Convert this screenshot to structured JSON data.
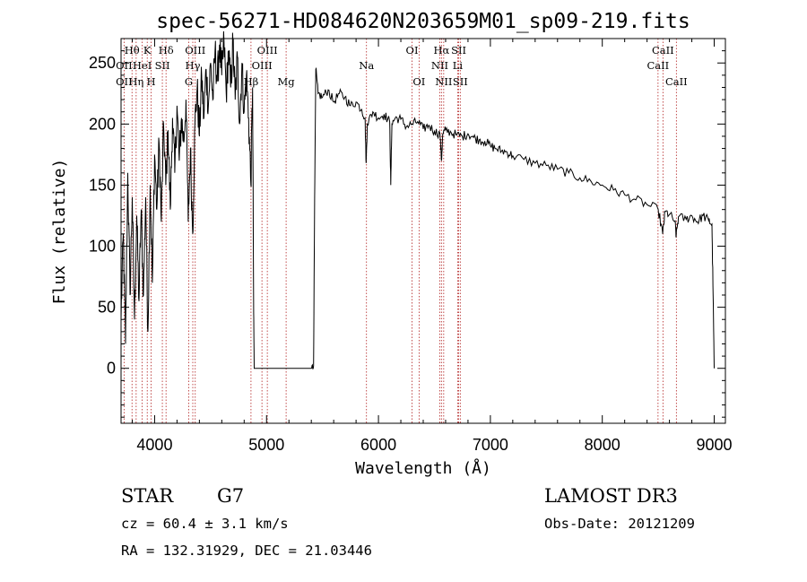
{
  "chart_data": {
    "type": "line",
    "title": "spec-56271-HD084620N203659M01_sp09-219.fits",
    "xlabel": "Wavelength (Å)",
    "ylabel": "Flux (relative)",
    "xlim": [
      3700,
      9100
    ],
    "ylim": [
      -45,
      270
    ],
    "x_ticks": [
      4000,
      5000,
      6000,
      7000,
      8000,
      9000
    ],
    "y_ticks": [
      0,
      50,
      100,
      150,
      200,
      250
    ],
    "grid": false,
    "series": [
      {
        "name": "spectrum",
        "points": [
          [
            3700,
            40
          ],
          [
            3720,
            110
          ],
          [
            3740,
            20
          ],
          [
            3760,
            160
          ],
          [
            3780,
            60
          ],
          [
            3800,
            140
          ],
          [
            3820,
            40
          ],
          [
            3840,
            125
          ],
          [
            3860,
            55
          ],
          [
            3880,
            130
          ],
          [
            3900,
            60
          ],
          [
            3920,
            140
          ],
          [
            3940,
            30
          ],
          [
            3960,
            150
          ],
          [
            3980,
            70
          ],
          [
            4000,
            175
          ],
          [
            4020,
            130
          ],
          [
            4040,
            185
          ],
          [
            4060,
            120
          ],
          [
            4080,
            200
          ],
          [
            4100,
            150
          ],
          [
            4120,
            195
          ],
          [
            4140,
            130
          ],
          [
            4160,
            205
          ],
          [
            4180,
            160
          ],
          [
            4200,
            215
          ],
          [
            4220,
            170
          ],
          [
            4240,
            205
          ],
          [
            4260,
            185
          ],
          [
            4280,
            220
          ],
          [
            4300,
            120
          ],
          [
            4320,
            180
          ],
          [
            4340,
            110
          ],
          [
            4360,
            200
          ],
          [
            4380,
            230
          ],
          [
            4400,
            190
          ],
          [
            4420,
            240
          ],
          [
            4440,
            205
          ],
          [
            4460,
            245
          ],
          [
            4480,
            215
          ],
          [
            4500,
            250
          ],
          [
            4520,
            220
          ],
          [
            4540,
            260
          ],
          [
            4560,
            235
          ],
          [
            4580,
            265
          ],
          [
            4600,
            240
          ],
          [
            4620,
            268
          ],
          [
            4640,
            225
          ],
          [
            4660,
            260
          ],
          [
            4680,
            230
          ],
          [
            4700,
            268
          ],
          [
            4720,
            220
          ],
          [
            4740,
            255
          ],
          [
            4760,
            200
          ],
          [
            4780,
            250
          ],
          [
            4800,
            210
          ],
          [
            4820,
            240
          ],
          [
            4840,
            205
          ],
          [
            4860,
            150
          ],
          [
            4875,
            230
          ],
          [
            4885,
            45
          ],
          [
            4890,
            0
          ],
          [
            5000,
            0
          ],
          [
            5200,
            0
          ],
          [
            5400,
            0
          ],
          [
            5420,
            2
          ],
          [
            5430,
            140
          ],
          [
            5440,
            245
          ],
          [
            5460,
            225
          ],
          [
            5500,
            222
          ],
          [
            5550,
            228
          ],
          [
            5600,
            218
          ],
          [
            5650,
            225
          ],
          [
            5700,
            222
          ],
          [
            5750,
            215
          ],
          [
            5800,
            218
          ],
          [
            5850,
            212
          ],
          [
            5880,
            205
          ],
          [
            5890,
            168
          ],
          [
            5900,
            200
          ],
          [
            5950,
            210
          ],
          [
            6000,
            205
          ],
          [
            6050,
            208
          ],
          [
            6100,
            202
          ],
          [
            6110,
            150
          ],
          [
            6120,
            200
          ],
          [
            6150,
            205
          ],
          [
            6200,
            204
          ],
          [
            6250,
            198
          ],
          [
            6300,
            200
          ],
          [
            6350,
            202
          ],
          [
            6400,
            196
          ],
          [
            6450,
            199
          ],
          [
            6500,
            194
          ],
          [
            6550,
            192
          ],
          [
            6563,
            170
          ],
          [
            6575,
            192
          ],
          [
            6600,
            195
          ],
          [
            6650,
            193
          ],
          [
            6700,
            191
          ],
          [
            6750,
            190
          ],
          [
            6800,
            192
          ],
          [
            6850,
            189
          ],
          [
            6900,
            187
          ],
          [
            6950,
            186
          ],
          [
            7000,
            182
          ],
          [
            7050,
            180
          ],
          [
            7100,
            178
          ],
          [
            7150,
            177
          ],
          [
            7200,
            174
          ],
          [
            7300,
            171
          ],
          [
            7400,
            168
          ],
          [
            7500,
            166
          ],
          [
            7600,
            163
          ],
          [
            7700,
            160
          ],
          [
            7800,
            156
          ],
          [
            7900,
            153
          ],
          [
            8000,
            150
          ],
          [
            8100,
            146
          ],
          [
            8200,
            142
          ],
          [
            8300,
            138
          ],
          [
            8400,
            134
          ],
          [
            8500,
            130
          ],
          [
            8540,
            110
          ],
          [
            8560,
            128
          ],
          [
            8600,
            126
          ],
          [
            8650,
            120
          ],
          [
            8660,
            108
          ],
          [
            8680,
            124
          ],
          [
            8750,
            122
          ],
          [
            8800,
            125
          ],
          [
            8850,
            120
          ],
          [
            8900,
            125
          ],
          [
            8950,
            121
          ],
          [
            8980,
            118
          ],
          [
            8990,
            60
          ],
          [
            9000,
            0
          ]
        ]
      }
    ],
    "line_markers": [
      {
        "label": "Hθ",
        "x": 3798,
        "row": 1
      },
      {
        "label": "K",
        "x": 3934,
        "row": 1
      },
      {
        "label": "Hδ",
        "x": 4102,
        "row": 1
      },
      {
        "label": "OII",
        "x": 3727,
        "row": 2
      },
      {
        "label": "HeI",
        "x": 3889,
        "row": 2
      },
      {
        "label": "SII",
        "x": 4069,
        "row": 2
      },
      {
        "label": "OII",
        "x": 3727,
        "row": 3
      },
      {
        "label": "Hη",
        "x": 3835,
        "row": 3
      },
      {
        "label": "H",
        "x": 3969,
        "row": 3
      },
      {
        "label": "OIII",
        "x": 4363,
        "row": 1
      },
      {
        "label": "Hγ",
        "x": 4341,
        "row": 2
      },
      {
        "label": "G",
        "x": 4305,
        "row": 3
      },
      {
        "label": "OIII",
        "x": 5007,
        "row": 1
      },
      {
        "label": "OIII",
        "x": 4959,
        "row": 2
      },
      {
        "label": "Hβ",
        "x": 4861,
        "row": 3
      },
      {
        "label": "Mg",
        "x": 5175,
        "row": 3
      },
      {
        "label": "Na",
        "x": 5893,
        "row": 2
      },
      {
        "label": "OI",
        "x": 6300,
        "row": 1
      },
      {
        "label": "OI",
        "x": 6363,
        "row": 3
      },
      {
        "label": "Hα",
        "x": 6563,
        "row": 1
      },
      {
        "label": "SII",
        "x": 6717,
        "row": 1
      },
      {
        "label": "NII",
        "x": 6548,
        "row": 2
      },
      {
        "label": "Li",
        "x": 6708,
        "row": 2
      },
      {
        "label": "NII",
        "x": 6583,
        "row": 3
      },
      {
        "label": "SII",
        "x": 6731,
        "row": 3
      },
      {
        "label": "CaII",
        "x": 8542,
        "row": 1
      },
      {
        "label": "CaII",
        "x": 8498,
        "row": 2
      },
      {
        "label": "CaII",
        "x": 8662,
        "row": 3
      }
    ],
    "marker_positions": [
      3727,
      3798,
      3835,
      3889,
      3934,
      3969,
      4069,
      4102,
      4305,
      4341,
      4363,
      4861,
      4959,
      5007,
      5175,
      5893,
      6300,
      6363,
      6548,
      6563,
      6583,
      6708,
      6717,
      6731,
      8498,
      8542,
      8662
    ],
    "marker_color": "#b22222",
    "line_color": "#000000"
  },
  "info": {
    "object_class": "STAR",
    "subclass": "G7",
    "survey": "LAMOST DR3",
    "redshift": "cz = 60.4 ± 3.1 km/s",
    "obs_date": "Obs-Date: 20121209",
    "coords": "RA = 132.31929, DEC =  21.03446"
  }
}
